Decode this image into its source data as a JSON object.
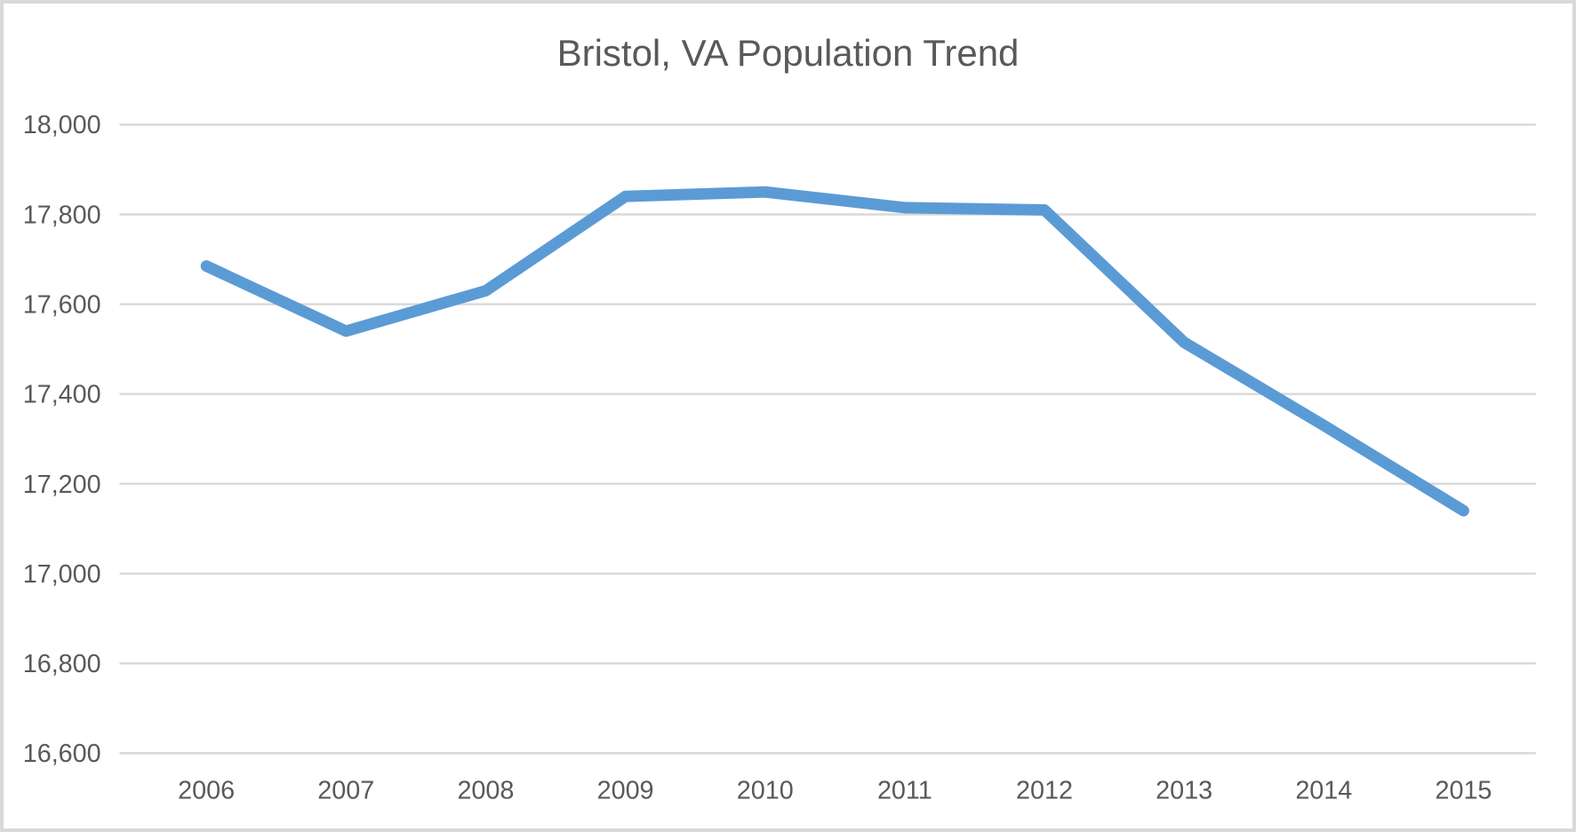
{
  "chart_data": {
    "type": "line",
    "title": "Bristol, VA Population Trend",
    "categories": [
      "2006",
      "2007",
      "2008",
      "2009",
      "2010",
      "2011",
      "2012",
      "2013",
      "2014",
      "2015"
    ],
    "values": [
      17685,
      17540,
      17630,
      17840,
      17850,
      17815,
      17810,
      17515,
      17330,
      17140
    ],
    "xlabel": "",
    "ylabel": "",
    "ylim": [
      16600,
      18000
    ],
    "ytick_step": 200,
    "ytick_labels": [
      "16,600",
      "16,800",
      "17,000",
      "17,200",
      "17,400",
      "17,600",
      "17,800",
      "18,000"
    ],
    "grid": "horizontal-only",
    "legend": "none",
    "colors": {
      "line": "#5B9BD5",
      "gridline": "#D9D9D9",
      "text": "#595959",
      "background": "#FFFFFF",
      "frame_border": "#D9D9D9"
    }
  }
}
